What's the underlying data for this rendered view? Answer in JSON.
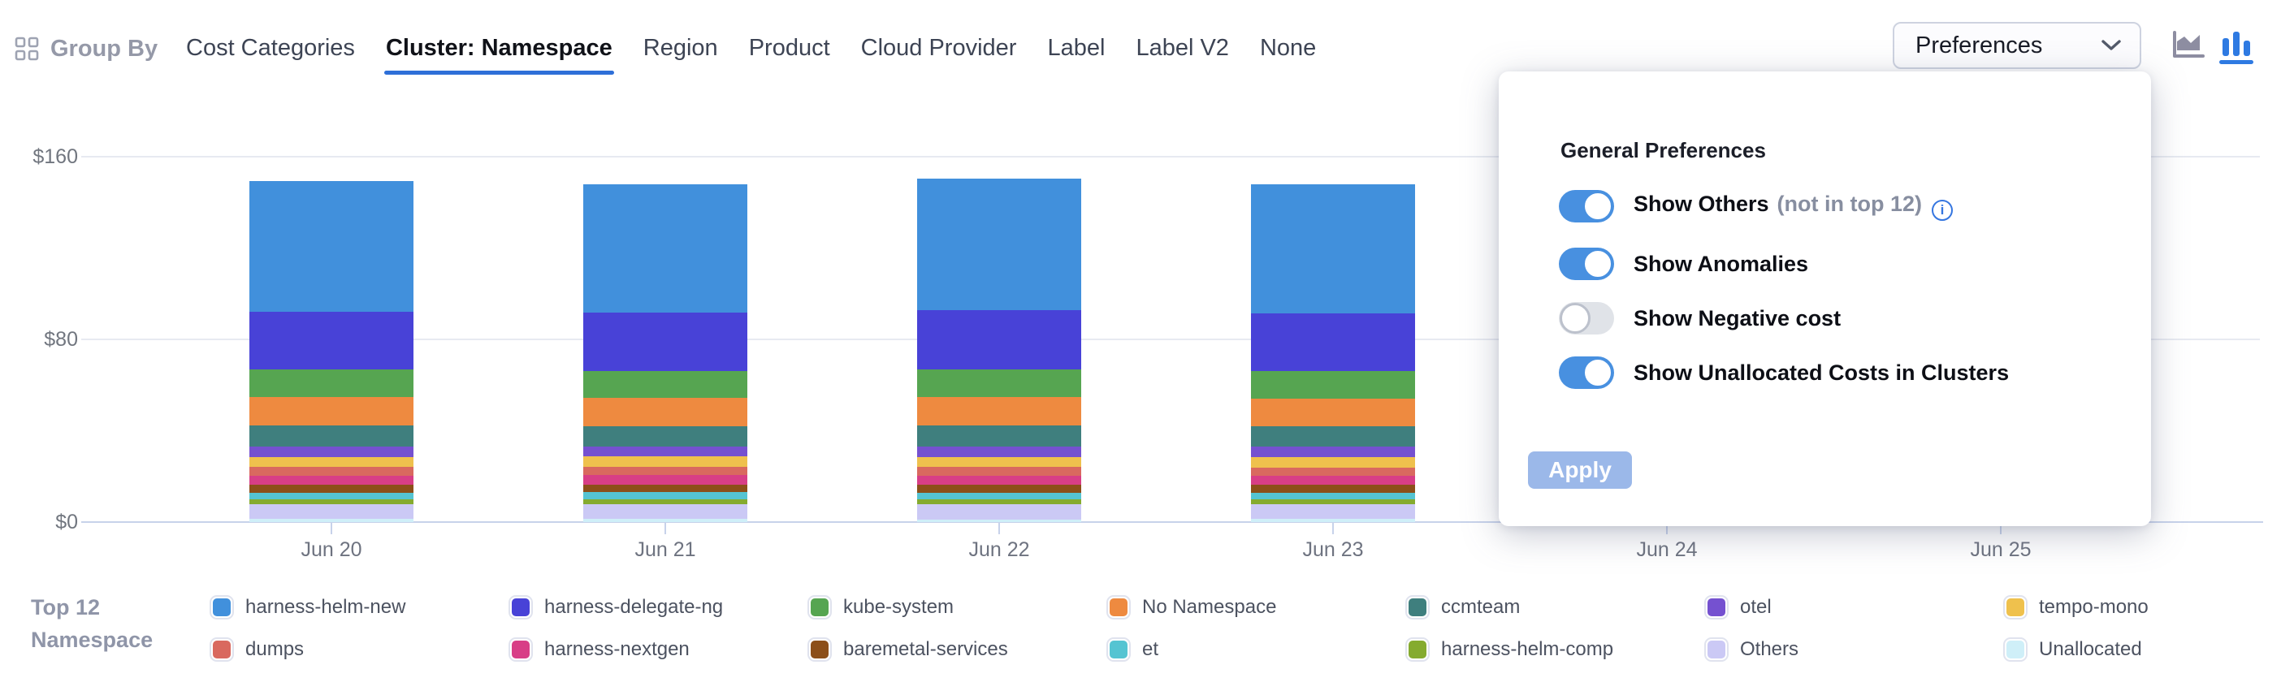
{
  "colors": {
    "accent": "#2e6fd8",
    "toggle_on": "#4890e0",
    "apply_bg": "#9bb8e9",
    "gridline": "#e7eaf1",
    "axis_line": "#c7d2ea"
  },
  "header": {
    "group_by_label": "Group By",
    "tabs": [
      {
        "label": "Cost Categories",
        "active": false
      },
      {
        "label": "Cluster: Namespace",
        "active": true
      },
      {
        "label": "Region",
        "active": false
      },
      {
        "label": "Product",
        "active": false
      },
      {
        "label": "Cloud Provider",
        "active": false
      },
      {
        "label": "Label",
        "active": false
      },
      {
        "label": "Label V2",
        "active": false
      },
      {
        "label": "None",
        "active": false
      }
    ],
    "preferences_button": {
      "label": "Preferences",
      "state": "expanded"
    },
    "chart_type_icons": [
      {
        "name": "area-chart-icon",
        "selected": false
      },
      {
        "name": "bar-chart-icon",
        "selected": true
      }
    ]
  },
  "panel": {
    "title": "General Preferences",
    "toggles": [
      {
        "label": "Show Others",
        "suffix": "(not in top 12)",
        "info": true,
        "on": true
      },
      {
        "label": "Show Anomalies",
        "suffix": "",
        "info": false,
        "on": true
      },
      {
        "label": "Show Negative cost",
        "suffix": "",
        "info": false,
        "on": false
      },
      {
        "label": "Show Unallocated Costs in Clusters",
        "suffix": "",
        "info": false,
        "on": true
      }
    ],
    "apply_label": "Apply"
  },
  "legend": {
    "title_line1": "Top 12",
    "title_line2": "Namespace",
    "items": [
      {
        "label": "harness-helm-new",
        "color": "#4190DC"
      },
      {
        "label": "dumps",
        "color": "#D9695F"
      },
      {
        "label": "harness-delegate-ng",
        "color": "#4842D7"
      },
      {
        "label": "harness-nextgen",
        "color": "#D83E86"
      },
      {
        "label": "kube-system",
        "color": "#56A551"
      },
      {
        "label": "baremetal-services",
        "color": "#8C4F19"
      },
      {
        "label": "No Namespace",
        "color": "#EE8A40"
      },
      {
        "label": "et",
        "color": "#55C4D2"
      },
      {
        "label": "ccmteam",
        "color": "#3F7F7E"
      },
      {
        "label": "harness-helm-comp",
        "color": "#85AB2F"
      },
      {
        "label": "otel",
        "color": "#7551D0"
      },
      {
        "label": "Others",
        "color": "#CBC9F5"
      },
      {
        "label": "tempo-mono",
        "color": "#EFC14D"
      },
      {
        "label": "Unallocated",
        "color": "#CFEFF8"
      }
    ]
  },
  "chart_data": {
    "type": "bar",
    "stacked": true,
    "title": "",
    "xlabel": "",
    "ylabel": "",
    "ylim": [
      0,
      160
    ],
    "grid": true,
    "legend_position": "bottom",
    "categories": [
      "Jun 20",
      "Jun 21",
      "Jun 22",
      "Jun 23",
      "Jun 24",
      "Jun 25"
    ],
    "yticks": [
      {
        "label": "$160",
        "value": 160
      },
      {
        "label": "$80",
        "value": 80
      },
      {
        "label": "$0",
        "value": 0
      }
    ],
    "series": [
      {
        "name": "harness-helm-new",
        "color": "#4190DC",
        "values": [
          57,
          56,
          57.5,
          56.5,
          null,
          null
        ]
      },
      {
        "name": "harness-delegate-ng",
        "color": "#4842D7",
        "values": [
          25.5,
          25.5,
          26,
          25.5,
          null,
          null
        ]
      },
      {
        "name": "kube-system",
        "color": "#56A551",
        "values": [
          12,
          11.9,
          12,
          11.8,
          null,
          null
        ]
      },
      {
        "name": "No Namespace",
        "color": "#EE8A40",
        "values": [
          12.5,
          12.4,
          12.6,
          12.4,
          null,
          null
        ]
      },
      {
        "name": "ccmteam",
        "color": "#3F7F7E",
        "values": [
          9,
          8.8,
          9,
          8.9,
          null,
          null
        ]
      },
      {
        "name": "otel",
        "color": "#7551D0",
        "values": [
          4.6,
          4.5,
          4.7,
          4.6,
          null,
          null
        ]
      },
      {
        "name": "tempo-mono",
        "color": "#EFC14D",
        "values": [
          4.3,
          4.4,
          4.3,
          4.3,
          null,
          null
        ]
      },
      {
        "name": "dumps",
        "color": "#D9695F",
        "values": [
          3.9,
          3.8,
          3.9,
          3.8,
          null,
          null
        ]
      },
      {
        "name": "harness-nextgen",
        "color": "#D83E86",
        "values": [
          3.9,
          4,
          3.9,
          3.9,
          null,
          null
        ]
      },
      {
        "name": "baremetal-services",
        "color": "#8C4F19",
        "values": [
          3.6,
          3.5,
          3.7,
          3.6,
          null,
          null
        ]
      },
      {
        "name": "et",
        "color": "#55C4D2",
        "values": [
          2.9,
          2.9,
          2.9,
          2.8,
          null,
          null
        ]
      },
      {
        "name": "harness-helm-comp",
        "color": "#85AB2F",
        "values": [
          2.1,
          2.2,
          2.1,
          2.2,
          null,
          null
        ]
      },
      {
        "name": "Others",
        "color": "#CBC9F5",
        "values": [
          6.4,
          6.3,
          6.5,
          6.4,
          null,
          null
        ]
      },
      {
        "name": "Unallocated",
        "color": "#CFEFF8",
        "values": [
          1.5,
          1.6,
          1.2,
          1.3,
          null,
          null
        ]
      }
    ]
  }
}
